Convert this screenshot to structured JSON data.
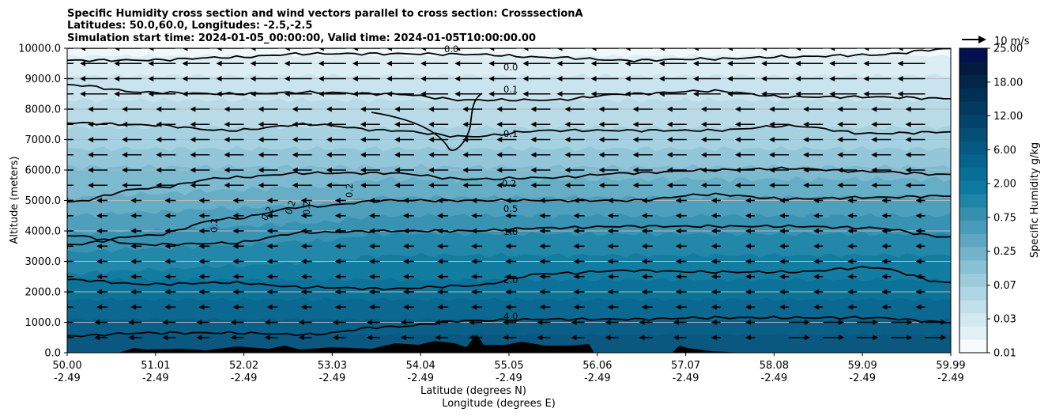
{
  "chart_data": {
    "type": "contour-cross-section",
    "title_lines": [
      "Specific Humidity cross section and wind vectors parallel to cross section: CrosssectionA",
      "Latitudes: 50.0,60.0, Longitudes: -2.5,-2.5",
      "Simulation start time: 2024-01-05_00:00:00, Valid time: 2024-01-05T10:00:00.00"
    ],
    "ylabel": "Altitude (meters)",
    "xlabel_lat": "Latitude (degrees N)",
    "xlabel_lon": "Longitude (degrees E)",
    "ylim": [
      0,
      10000
    ],
    "y_ticks": [
      "0.0",
      "1000.0",
      "2000.0",
      "3000.0",
      "4000.0",
      "5000.0",
      "6000.0",
      "7000.0",
      "8000.0",
      "9000.0",
      "10000.0"
    ],
    "x_ticks_lat": [
      "50.00",
      "51.01",
      "52.02",
      "53.03",
      "54.04",
      "55.05",
      "56.06",
      "57.07",
      "58.08",
      "59.09",
      "59.99"
    ],
    "x_ticks_lon": [
      "-2.49",
      "-2.49",
      "-2.49",
      "-2.49",
      "-2.49",
      "-2.49",
      "-2.49",
      "-2.49",
      "-2.49",
      "-2.49",
      "-2.49"
    ],
    "colorbar_label": "Specific Humidity g/kg",
    "colorbar_ticks": [
      "0.01",
      "0.03",
      "0.07",
      "0.25",
      "0.75",
      "2.00",
      "6.00",
      "12.00",
      "18.00",
      "25.00"
    ],
    "colorbar_colors": [
      "#f7fbfd",
      "#e3f1f6",
      "#d2e9f1",
      "#c0e0eb",
      "#aed6e4",
      "#9ccbdc",
      "#88c0d4",
      "#73b4cb",
      "#5ea7c2",
      "#4a9bb9",
      "#3590b0",
      "#1f85a8",
      "#0e79a0",
      "#086e97",
      "#06638d",
      "#065982",
      "#054f77",
      "#04446b",
      "#033a60",
      "#022f54",
      "#022549",
      "#021b3d",
      "#031050"
    ],
    "quiver_key": "10 m/s",
    "contours": [
      {
        "level": "0.0",
        "altitude_m": [
          9600,
          9610,
          9700,
          9820,
          9820,
          9800,
          9700,
          9600,
          9650,
          9720,
          9780,
          9980
        ]
      },
      {
        "level": "0.1",
        "altitude_m": [
          8800,
          8550,
          8500,
          8550,
          8500,
          8300,
          8300,
          8500,
          8600,
          8400,
          8400,
          8350
        ]
      },
      {
        "level": "0.1",
        "altitude_m": [
          7550,
          7480,
          7300,
          7500,
          7300,
          7100,
          7300,
          7300,
          7300,
          7450,
          7200,
          7250
        ]
      },
      {
        "level": "0.2",
        "altitude_m": [
          4950,
          5400,
          5750,
          5900,
          5900,
          5700,
          5750,
          5900,
          6000,
          6050,
          5950,
          5850
        ]
      },
      {
        "level": "0.5",
        "altitude_m": [
          3550,
          3850,
          4400,
          4800,
          5000,
          5000,
          5000,
          5000,
          5200,
          5050,
          5100,
          5150
        ]
      },
      {
        "level": "1.0",
        "altitude_m": [
          3850,
          3550,
          3600,
          3950,
          4000,
          4000,
          4100,
          4150,
          4150,
          4150,
          4100,
          3800
        ]
      },
      {
        "level": "2.0",
        "altitude_m": [
          2400,
          2250,
          2300,
          2150,
          2100,
          2200,
          2600,
          2700,
          2650,
          2650,
          2800,
          2300
        ]
      },
      {
        "level": "4.0",
        "altitude_m": [
          550,
          650,
          650,
          600,
          850,
          1050,
          1100,
          1100,
          1150,
          1150,
          1150,
          1000
        ]
      }
    ],
    "terrain_m": [
      0,
      0,
      0,
      0,
      0,
      0,
      0,
      0,
      0,
      0,
      0
    ]
  }
}
